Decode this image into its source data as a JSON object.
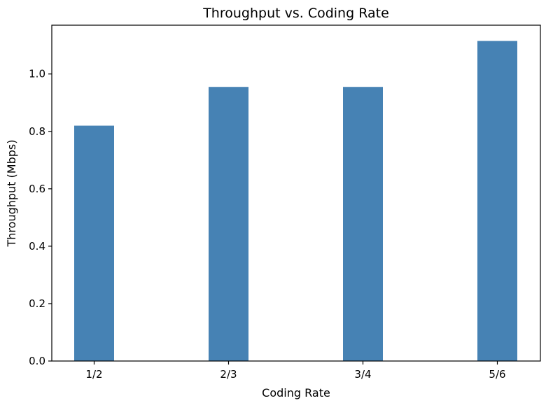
{
  "chart_data": {
    "type": "bar",
    "title": "Throughput vs. Coding Rate",
    "xlabel": "Coding Rate",
    "ylabel": "Throughput (Mbps)",
    "categories": [
      "1/2",
      "2/3",
      "3/4",
      "5/6"
    ],
    "values": [
      0.82,
      0.955,
      0.955,
      1.115
    ],
    "ylim": [
      0,
      1.17
    ],
    "yticks": [
      0.0,
      0.2,
      0.4,
      0.6,
      0.8,
      1.0
    ],
    "ytick_labels": [
      "0.0",
      "0.2",
      "0.4",
      "0.6",
      "0.8",
      "1.0"
    ],
    "grid": false,
    "bar_color": "#4682b4"
  }
}
